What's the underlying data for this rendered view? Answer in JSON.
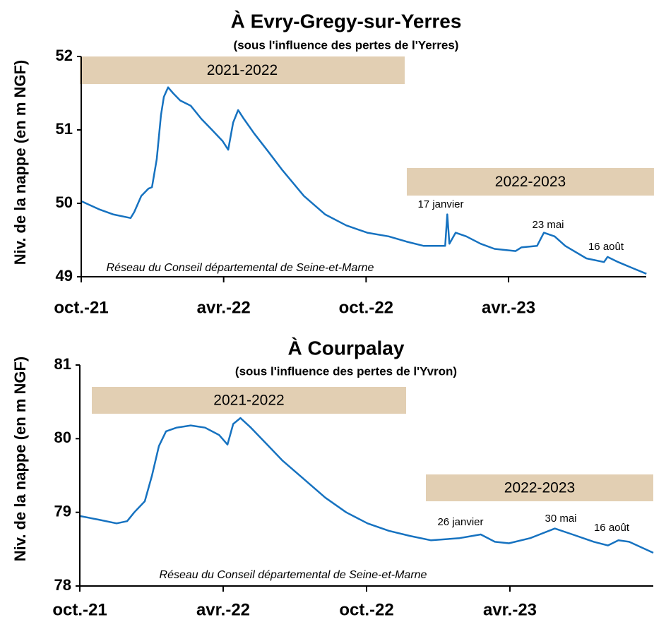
{
  "chart_data": [
    {
      "type": "line",
      "title": "À Evry-Gregy-sur-Yerres",
      "subtitle": "(sous l'influence des pertes de l'Yerres)",
      "ylabel": "Niv. de la nappe (en m NGF)",
      "annotation": "Réseau du Conseil départemental de Seine-et-Marne",
      "periods": [
        "2021-2022",
        "2022-2023"
      ],
      "events": [
        "17 janvier",
        "23 mai",
        "16 août"
      ],
      "xlim": [
        0,
        23.8
      ],
      "xticks": [
        {
          "value": 0,
          "label": "oct.-21"
        },
        {
          "value": 6,
          "label": "avr.-22"
        },
        {
          "value": 12,
          "label": "oct.-22"
        },
        {
          "value": 18,
          "label": "avr.-23"
        }
      ],
      "ylim": [
        49,
        52
      ],
      "yticks": [
        49,
        50,
        51,
        52
      ],
      "series": [
        {
          "name": "Evry-Gregy-sur-Yerres",
          "color": "#1672c0",
          "x": [
            0,
            0.74,
            1.34,
            2.08,
            2.23,
            2.53,
            2.83,
            2.98,
            3.18,
            3.36,
            3.48,
            3.66,
            3.87,
            4.17,
            4.61,
            5.06,
            5.51,
            5.95,
            6.19,
            6.4,
            6.61,
            6.85,
            7.29,
            7.89,
            8.48,
            9.38,
            10.27,
            11.16,
            12.05,
            12.95,
            13.69,
            14.43,
            15.33,
            15.42,
            15.51,
            15.77,
            16.22,
            16.82,
            17.41,
            18.3,
            18.54,
            19.2,
            19.49,
            19.94,
            20.39,
            21.28,
            22.02,
            22.17,
            22.62,
            23.36,
            23.81
          ],
          "values": [
            50.03,
            49.92,
            49.85,
            49.8,
            49.88,
            50.1,
            50.2,
            50.22,
            50.6,
            51.2,
            51.45,
            51.58,
            51.5,
            51.4,
            51.33,
            51.15,
            51.0,
            50.85,
            50.73,
            51.1,
            51.27,
            51.15,
            50.95,
            50.7,
            50.45,
            50.1,
            49.85,
            49.7,
            49.6,
            49.55,
            49.48,
            49.42,
            49.42,
            49.85,
            49.45,
            49.6,
            49.55,
            49.45,
            49.38,
            49.35,
            49.4,
            49.42,
            49.6,
            49.55,
            49.42,
            49.25,
            49.2,
            49.27,
            49.2,
            49.1,
            49.04
          ]
        }
      ]
    },
    {
      "type": "line",
      "title": "À Courpalay",
      "subtitle": "(sous l'influence des pertes de l'Yvron)",
      "ylabel": "Niv. de la nappe (en m NGF)",
      "annotation": "Réseau du Conseil départemental de Seine-et-Marne",
      "periods": [
        "2021-2022",
        "2022-2023"
      ],
      "events": [
        "26 janvier",
        "30 mai",
        "16 août"
      ],
      "xlim": [
        0,
        24
      ],
      "xticks": [
        {
          "value": 0,
          "label": "oct.-21"
        },
        {
          "value": 6,
          "label": "avr.-22"
        },
        {
          "value": 12,
          "label": "oct.-22"
        },
        {
          "value": 18,
          "label": "avr.-23"
        }
      ],
      "ylim": [
        78,
        81
      ],
      "yticks": [
        78,
        79,
        80,
        81
      ],
      "series": [
        {
          "name": "Courpalay",
          "color": "#1672c0",
          "x": [
            0,
            0.8,
            1.54,
            1.98,
            2.28,
            2.72,
            3.02,
            3.31,
            3.61,
            4.05,
            4.64,
            5.24,
            5.83,
            6.18,
            6.42,
            6.72,
            7.16,
            7.75,
            8.49,
            9.38,
            10.27,
            11.15,
            12.04,
            12.93,
            13.82,
            14.7,
            15.89,
            16.78,
            17.37,
            17.96,
            18.85,
            19.88,
            20.62,
            21.51,
            22.1,
            22.54,
            22.99,
            24.0
          ],
          "values": [
            78.95,
            78.9,
            78.85,
            78.88,
            79.0,
            79.15,
            79.5,
            79.9,
            80.1,
            80.15,
            80.18,
            80.15,
            80.05,
            79.92,
            80.2,
            80.28,
            80.15,
            79.95,
            79.7,
            79.45,
            79.2,
            79.0,
            78.85,
            78.75,
            78.68,
            78.62,
            78.65,
            78.7,
            78.6,
            78.58,
            78.65,
            78.78,
            78.7,
            78.6,
            78.55,
            78.62,
            78.6,
            78.45
          ]
        }
      ]
    }
  ]
}
